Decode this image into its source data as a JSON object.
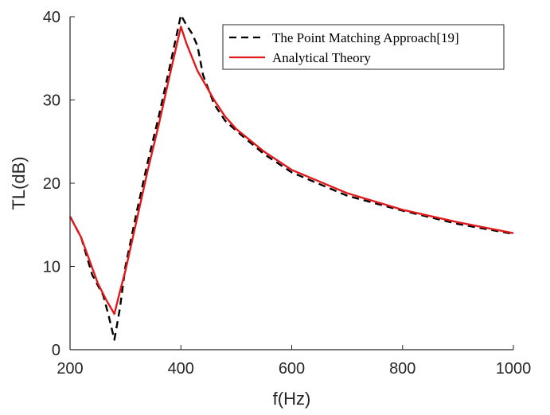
{
  "chart_data": {
    "type": "line",
    "title": "",
    "xlabel": "f(Hz)",
    "ylabel": "TL(dB)",
    "xlim": [
      200,
      1000
    ],
    "ylim": [
      0,
      40
    ],
    "xticks": [
      200,
      400,
      600,
      800,
      1000
    ],
    "yticks": [
      0,
      10,
      20,
      30,
      40
    ],
    "grid": false,
    "legend_position": "top-right",
    "series": [
      {
        "name": "The Point Matching Approach[19]",
        "color": "#000000",
        "style": "dashed",
        "x": [
          200,
          220,
          240,
          260,
          270,
          280,
          290,
          300,
          320,
          340,
          360,
          380,
          400,
          410,
          420,
          430,
          440,
          460,
          480,
          500,
          550,
          600,
          700,
          800,
          900,
          1000
        ],
        "y": [
          16.0,
          13.5,
          9.0,
          6.5,
          4.0,
          1.2,
          5.0,
          10.0,
          16.5,
          22.5,
          28.0,
          34.0,
          40.2,
          39.0,
          38.0,
          36.5,
          33.0,
          29.5,
          27.5,
          26.3,
          23.5,
          21.3,
          18.5,
          16.7,
          15.1,
          13.9
        ]
      },
      {
        "name": "Analytical Theory",
        "color": "#e0191b",
        "style": "solid",
        "x": [
          200,
          220,
          250,
          265,
          280,
          290,
          300,
          320,
          340,
          360,
          380,
          400,
          410,
          430,
          460,
          480,
          500,
          550,
          600,
          700,
          800,
          900,
          1000
        ],
        "y": [
          16.0,
          13.5,
          8.0,
          6.0,
          4.3,
          7.0,
          9.5,
          15.5,
          21.5,
          27.0,
          33.0,
          38.8,
          36.8,
          33.5,
          30.0,
          28.0,
          26.5,
          23.8,
          21.6,
          18.8,
          16.8,
          15.3,
          14.0
        ]
      }
    ]
  }
}
